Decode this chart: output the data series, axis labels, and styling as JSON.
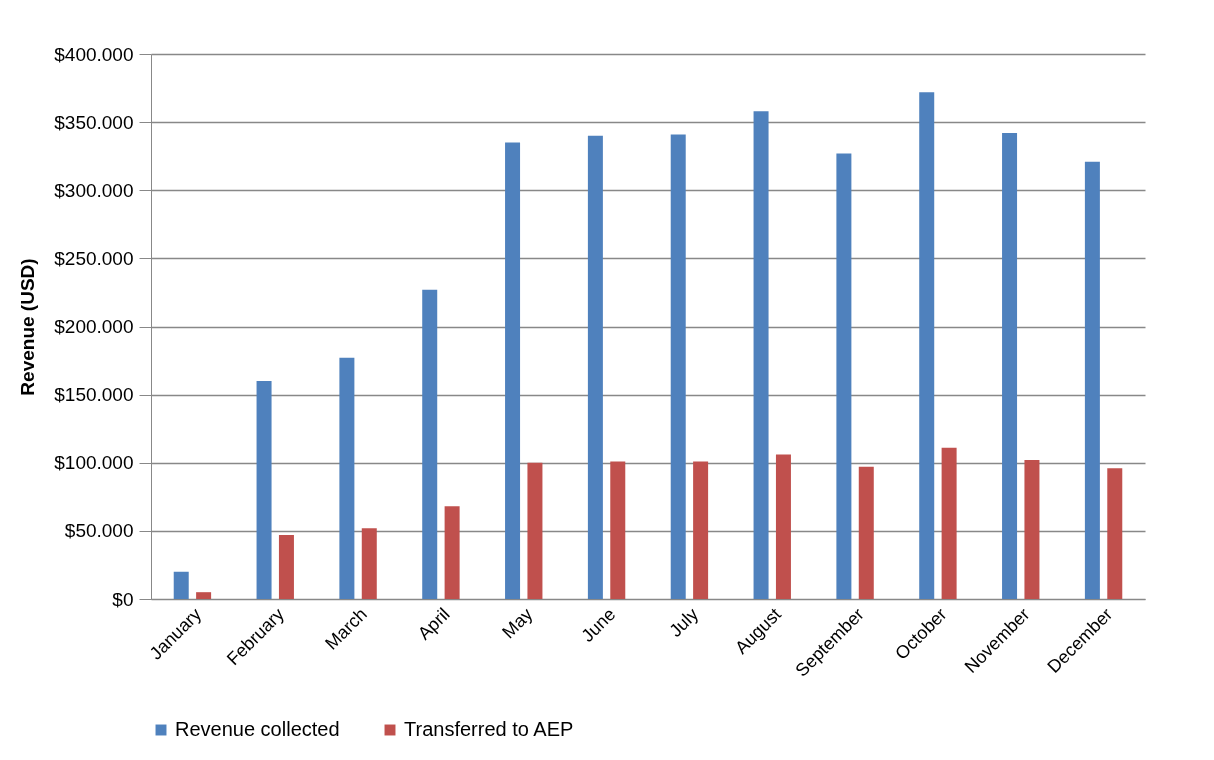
{
  "chart_data": {
    "type": "bar",
    "ylabel": "Revenue (USD)",
    "categories": [
      "January",
      "February",
      "March",
      "April",
      "May",
      "June",
      "July",
      "August",
      "September",
      "October",
      "November",
      "December"
    ],
    "series": [
      {
        "name": "Revenue collected",
        "color": "#4f81bd",
        "values": [
          20000,
          160000,
          177000,
          227000,
          335000,
          340000,
          341000,
          358000,
          327000,
          372000,
          342000,
          321000
        ]
      },
      {
        "name": "Transferred to AEP",
        "color": "#c0504d",
        "values": [
          5000,
          47000,
          52000,
          68000,
          100000,
          101000,
          101000,
          106000,
          97000,
          111000,
          102000,
          96000
        ]
      }
    ],
    "ylim": [
      0,
      400000
    ],
    "yticks": [
      {
        "value": 0,
        "label": "$0"
      },
      {
        "value": 50000,
        "label": "$50.000"
      },
      {
        "value": 100000,
        "label": "$100.000"
      },
      {
        "value": 150000,
        "label": "$150.000"
      },
      {
        "value": 200000,
        "label": "$200.000"
      },
      {
        "value": 250000,
        "label": "$250.000"
      },
      {
        "value": 300000,
        "label": "$300.000"
      },
      {
        "value": 350000,
        "label": "$350.000"
      },
      {
        "value": 400000,
        "label": "$400.000"
      }
    ],
    "grid": "y",
    "legend": "bottom"
  }
}
